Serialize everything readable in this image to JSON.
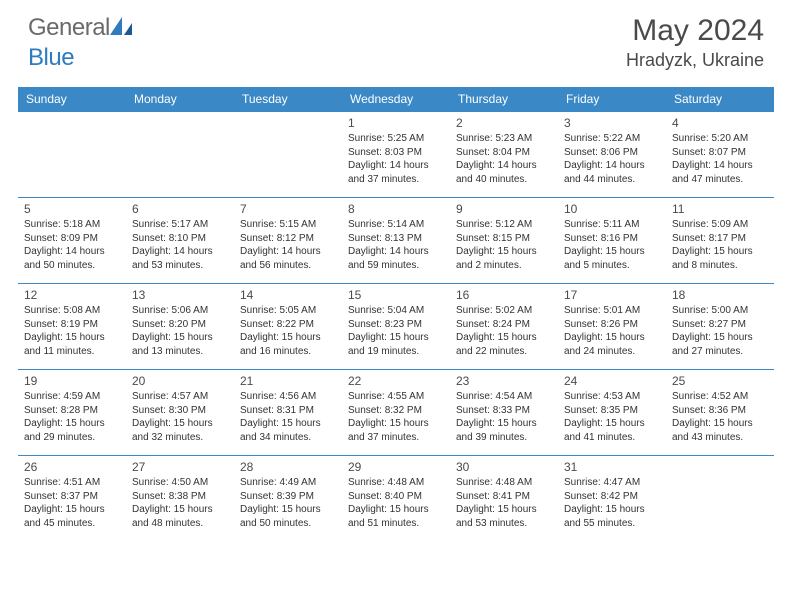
{
  "brand": {
    "part1": "General",
    "part2": "Blue"
  },
  "title": "May 2024",
  "location": "Hradyzk, Ukraine",
  "colors": {
    "header_bg": "#3a88c6",
    "header_text": "#ffffff",
    "border": "#3a88c6",
    "text": "#333333",
    "brand_gray": "#6a6a6a",
    "brand_blue": "#2f7bbf"
  },
  "day_headers": [
    "Sunday",
    "Monday",
    "Tuesday",
    "Wednesday",
    "Thursday",
    "Friday",
    "Saturday"
  ],
  "weeks": [
    [
      null,
      null,
      null,
      {
        "n": "1",
        "sr": "Sunrise: 5:25 AM",
        "ss": "Sunset: 8:03 PM",
        "d1": "Daylight: 14 hours",
        "d2": "and 37 minutes."
      },
      {
        "n": "2",
        "sr": "Sunrise: 5:23 AM",
        "ss": "Sunset: 8:04 PM",
        "d1": "Daylight: 14 hours",
        "d2": "and 40 minutes."
      },
      {
        "n": "3",
        "sr": "Sunrise: 5:22 AM",
        "ss": "Sunset: 8:06 PM",
        "d1": "Daylight: 14 hours",
        "d2": "and 44 minutes."
      },
      {
        "n": "4",
        "sr": "Sunrise: 5:20 AM",
        "ss": "Sunset: 8:07 PM",
        "d1": "Daylight: 14 hours",
        "d2": "and 47 minutes."
      }
    ],
    [
      {
        "n": "5",
        "sr": "Sunrise: 5:18 AM",
        "ss": "Sunset: 8:09 PM",
        "d1": "Daylight: 14 hours",
        "d2": "and 50 minutes."
      },
      {
        "n": "6",
        "sr": "Sunrise: 5:17 AM",
        "ss": "Sunset: 8:10 PM",
        "d1": "Daylight: 14 hours",
        "d2": "and 53 minutes."
      },
      {
        "n": "7",
        "sr": "Sunrise: 5:15 AM",
        "ss": "Sunset: 8:12 PM",
        "d1": "Daylight: 14 hours",
        "d2": "and 56 minutes."
      },
      {
        "n": "8",
        "sr": "Sunrise: 5:14 AM",
        "ss": "Sunset: 8:13 PM",
        "d1": "Daylight: 14 hours",
        "d2": "and 59 minutes."
      },
      {
        "n": "9",
        "sr": "Sunrise: 5:12 AM",
        "ss": "Sunset: 8:15 PM",
        "d1": "Daylight: 15 hours",
        "d2": "and 2 minutes."
      },
      {
        "n": "10",
        "sr": "Sunrise: 5:11 AM",
        "ss": "Sunset: 8:16 PM",
        "d1": "Daylight: 15 hours",
        "d2": "and 5 minutes."
      },
      {
        "n": "11",
        "sr": "Sunrise: 5:09 AM",
        "ss": "Sunset: 8:17 PM",
        "d1": "Daylight: 15 hours",
        "d2": "and 8 minutes."
      }
    ],
    [
      {
        "n": "12",
        "sr": "Sunrise: 5:08 AM",
        "ss": "Sunset: 8:19 PM",
        "d1": "Daylight: 15 hours",
        "d2": "and 11 minutes."
      },
      {
        "n": "13",
        "sr": "Sunrise: 5:06 AM",
        "ss": "Sunset: 8:20 PM",
        "d1": "Daylight: 15 hours",
        "d2": "and 13 minutes."
      },
      {
        "n": "14",
        "sr": "Sunrise: 5:05 AM",
        "ss": "Sunset: 8:22 PM",
        "d1": "Daylight: 15 hours",
        "d2": "and 16 minutes."
      },
      {
        "n": "15",
        "sr": "Sunrise: 5:04 AM",
        "ss": "Sunset: 8:23 PM",
        "d1": "Daylight: 15 hours",
        "d2": "and 19 minutes."
      },
      {
        "n": "16",
        "sr": "Sunrise: 5:02 AM",
        "ss": "Sunset: 8:24 PM",
        "d1": "Daylight: 15 hours",
        "d2": "and 22 minutes."
      },
      {
        "n": "17",
        "sr": "Sunrise: 5:01 AM",
        "ss": "Sunset: 8:26 PM",
        "d1": "Daylight: 15 hours",
        "d2": "and 24 minutes."
      },
      {
        "n": "18",
        "sr": "Sunrise: 5:00 AM",
        "ss": "Sunset: 8:27 PM",
        "d1": "Daylight: 15 hours",
        "d2": "and 27 minutes."
      }
    ],
    [
      {
        "n": "19",
        "sr": "Sunrise: 4:59 AM",
        "ss": "Sunset: 8:28 PM",
        "d1": "Daylight: 15 hours",
        "d2": "and 29 minutes."
      },
      {
        "n": "20",
        "sr": "Sunrise: 4:57 AM",
        "ss": "Sunset: 8:30 PM",
        "d1": "Daylight: 15 hours",
        "d2": "and 32 minutes."
      },
      {
        "n": "21",
        "sr": "Sunrise: 4:56 AM",
        "ss": "Sunset: 8:31 PM",
        "d1": "Daylight: 15 hours",
        "d2": "and 34 minutes."
      },
      {
        "n": "22",
        "sr": "Sunrise: 4:55 AM",
        "ss": "Sunset: 8:32 PM",
        "d1": "Daylight: 15 hours",
        "d2": "and 37 minutes."
      },
      {
        "n": "23",
        "sr": "Sunrise: 4:54 AM",
        "ss": "Sunset: 8:33 PM",
        "d1": "Daylight: 15 hours",
        "d2": "and 39 minutes."
      },
      {
        "n": "24",
        "sr": "Sunrise: 4:53 AM",
        "ss": "Sunset: 8:35 PM",
        "d1": "Daylight: 15 hours",
        "d2": "and 41 minutes."
      },
      {
        "n": "25",
        "sr": "Sunrise: 4:52 AM",
        "ss": "Sunset: 8:36 PM",
        "d1": "Daylight: 15 hours",
        "d2": "and 43 minutes."
      }
    ],
    [
      {
        "n": "26",
        "sr": "Sunrise: 4:51 AM",
        "ss": "Sunset: 8:37 PM",
        "d1": "Daylight: 15 hours",
        "d2": "and 45 minutes."
      },
      {
        "n": "27",
        "sr": "Sunrise: 4:50 AM",
        "ss": "Sunset: 8:38 PM",
        "d1": "Daylight: 15 hours",
        "d2": "and 48 minutes."
      },
      {
        "n": "28",
        "sr": "Sunrise: 4:49 AM",
        "ss": "Sunset: 8:39 PM",
        "d1": "Daylight: 15 hours",
        "d2": "and 50 minutes."
      },
      {
        "n": "29",
        "sr": "Sunrise: 4:48 AM",
        "ss": "Sunset: 8:40 PM",
        "d1": "Daylight: 15 hours",
        "d2": "and 51 minutes."
      },
      {
        "n": "30",
        "sr": "Sunrise: 4:48 AM",
        "ss": "Sunset: 8:41 PM",
        "d1": "Daylight: 15 hours",
        "d2": "and 53 minutes."
      },
      {
        "n": "31",
        "sr": "Sunrise: 4:47 AM",
        "ss": "Sunset: 8:42 PM",
        "d1": "Daylight: 15 hours",
        "d2": "and 55 minutes."
      },
      null
    ]
  ]
}
